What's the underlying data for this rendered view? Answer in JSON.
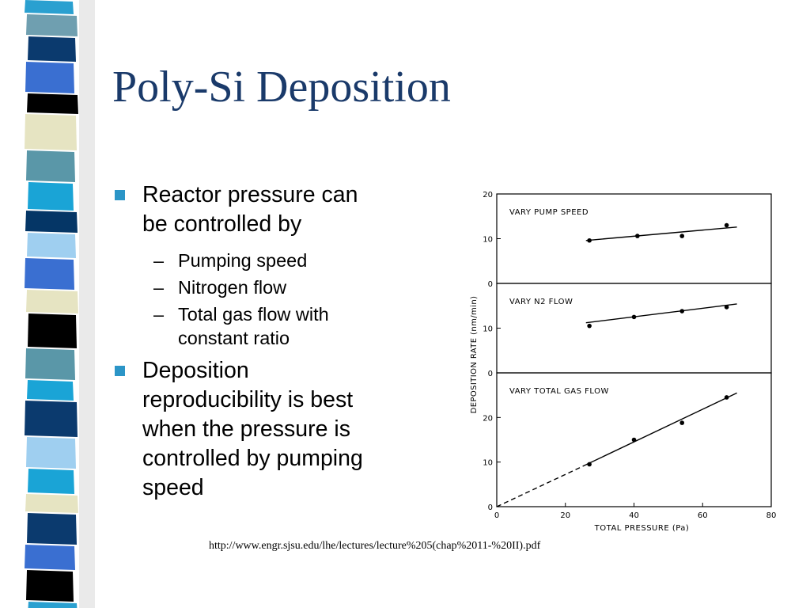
{
  "slide": {
    "title": "Poly-Si Deposition",
    "source": "http://www.engr.sjsu.edu/lhe/lectures/lecture%205(chap%2011-%20II).pdf",
    "accent_color": "#2b95c7",
    "title_color": "#1a3a6a"
  },
  "bullets": [
    {
      "text_lines": [
        "Reactor pressure can",
        "be controlled by"
      ],
      "sub": [
        {
          "lines": [
            "Pumping speed"
          ]
        },
        {
          "lines": [
            "Nitrogen flow"
          ]
        },
        {
          "lines": [
            "Total gas flow with",
            "constant ratio"
          ]
        }
      ]
    },
    {
      "text_lines": [
        "Deposition",
        "reproducibility is best",
        "when the pressure is",
        "controlled by pumping",
        "speed"
      ],
      "sub": []
    }
  ],
  "chart_data": {
    "type": "scatter",
    "ylabel": "DEPOSITION RATE (nm/min)",
    "xlabel": "TOTAL PRESSURE (Pa)",
    "xlim": [
      0,
      80
    ],
    "x_ticks": [
      "0",
      "20",
      "40",
      "60",
      "80"
    ],
    "panels": [
      {
        "label": "VARY PUMP SPEED",
        "ylim": [
          0,
          20
        ],
        "y_ticks": [
          "20",
          "10",
          "0"
        ],
        "points": [
          [
            27,
            9.6
          ],
          [
            41,
            10.6
          ],
          [
            54,
            10.6
          ],
          [
            67,
            13.0
          ]
        ],
        "fit_line": [
          [
            26,
            9.6
          ],
          [
            70,
            12.6
          ]
        ]
      },
      {
        "label": "VARY N2 FLOW",
        "ylim": [
          0,
          20
        ],
        "y_ticks": [
          "10",
          "0"
        ],
        "points": [
          [
            27,
            10.5
          ],
          [
            40,
            12.5
          ],
          [
            54,
            13.8
          ],
          [
            67,
            14.7
          ]
        ],
        "fit_line": [
          [
            26,
            11.2
          ],
          [
            70,
            15.4
          ]
        ]
      },
      {
        "label": "VARY TOTAL GAS FLOW",
        "ylim": [
          0,
          30
        ],
        "y_ticks": [
          "20",
          "10",
          "0"
        ],
        "points": [
          [
            27,
            9.5
          ],
          [
            40,
            15.0
          ],
          [
            54,
            18.8
          ],
          [
            67,
            24.5
          ]
        ],
        "fit_line": [
          [
            26,
            9.4
          ],
          [
            70,
            25.5
          ]
        ],
        "extrapolation": [
          [
            0,
            0
          ],
          [
            26,
            9.4
          ]
        ]
      }
    ]
  }
}
